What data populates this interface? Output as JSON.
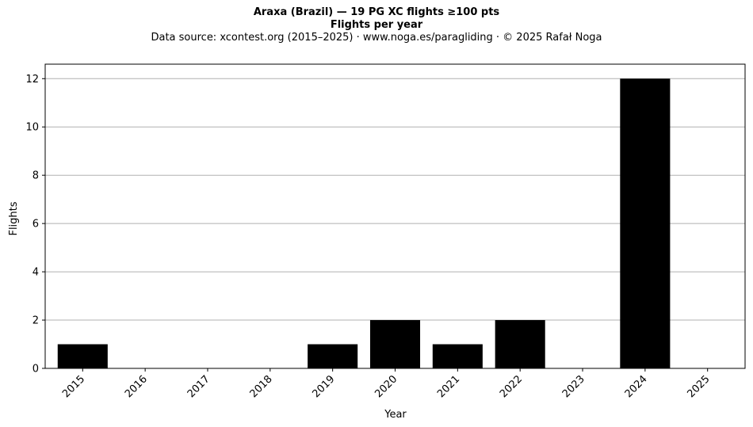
{
  "chart_data": {
    "type": "bar",
    "title": "Araxa (Brazil)  —  19 PG XC flights ≥100 pts",
    "subtitle": "Flights per year",
    "source": "Data source: xcontest.org (2015–2025)  ·  www.noga.es/paragliding  ·  © 2025 Rafał Noga",
    "xlabel": "Year",
    "ylabel": "Flights",
    "categories": [
      "2015",
      "2016",
      "2017",
      "2018",
      "2019",
      "2020",
      "2021",
      "2022",
      "2023",
      "2024",
      "2025"
    ],
    "values": [
      1,
      0,
      0,
      0,
      1,
      2,
      1,
      2,
      0,
      12,
      0
    ],
    "ylim": [
      0,
      12.6
    ],
    "yticks": [
      0,
      2,
      4,
      6,
      8,
      10,
      12
    ],
    "grid": "horizontal",
    "bar_color": "#000000",
    "grid_color": "#b0b0b0"
  }
}
